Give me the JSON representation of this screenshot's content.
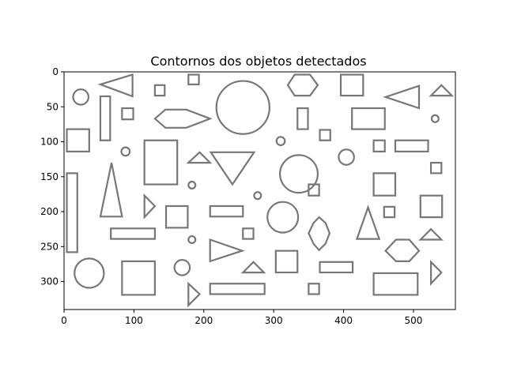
{
  "chart_data": {
    "type": "image",
    "title": "Contornos dos objetos detectados",
    "xlim": [
      0,
      560
    ],
    "ylim": [
      340,
      0
    ],
    "x_ticks": [
      0,
      100,
      200,
      300,
      400,
      500
    ],
    "y_ticks": [
      0,
      50,
      100,
      150,
      200,
      250,
      300
    ],
    "stroke_color": "#777777",
    "axes_color": "#000000",
    "background_color": "#ffffff",
    "objects": [
      {
        "shape": "circle",
        "cx": 24,
        "cy": 36,
        "r": 11
      },
      {
        "shape": "triangle",
        "points": [
          [
            52,
            18
          ],
          [
            98,
            4
          ],
          [
            98,
            35
          ]
        ]
      },
      {
        "shape": "rect",
        "x": 130,
        "y": 19,
        "w": 14,
        "h": 15
      },
      {
        "shape": "rect",
        "x": 178,
        "y": 4,
        "w": 15,
        "h": 14
      },
      {
        "shape": "circle",
        "cx": 256,
        "cy": 51,
        "r": 38
      },
      {
        "shape": "hexagon",
        "points": [
          [
            320,
            19
          ],
          [
            330,
            4
          ],
          [
            352,
            4
          ],
          [
            363,
            19
          ],
          [
            352,
            34
          ],
          [
            330,
            34
          ]
        ]
      },
      {
        "shape": "rect",
        "x": 396,
        "y": 4,
        "w": 32,
        "h": 30
      },
      {
        "shape": "triangle",
        "points": [
          [
            460,
            36
          ],
          [
            508,
            20
          ],
          [
            508,
            52
          ]
        ]
      },
      {
        "shape": "triangle",
        "points": [
          [
            525,
            34
          ],
          [
            540,
            19
          ],
          [
            555,
            34
          ]
        ]
      },
      {
        "shape": "rect",
        "x": 52,
        "y": 35,
        "w": 14,
        "h": 63
      },
      {
        "shape": "rect",
        "x": 83,
        "y": 52,
        "w": 16,
        "h": 16
      },
      {
        "shape": "hexagon",
        "points": [
          [
            130,
            67
          ],
          [
            145,
            54
          ],
          [
            175,
            54
          ],
          [
            209,
            67
          ],
          [
            175,
            80
          ],
          [
            145,
            80
          ]
        ]
      },
      {
        "shape": "rect",
        "x": 334,
        "y": 52,
        "w": 15,
        "h": 30
      },
      {
        "shape": "rect",
        "x": 412,
        "y": 52,
        "w": 47,
        "h": 30
      },
      {
        "shape": "circle",
        "cx": 531,
        "cy": 67,
        "r": 5
      },
      {
        "shape": "rect",
        "x": 4,
        "y": 82,
        "w": 32,
        "h": 32
      },
      {
        "shape": "circle",
        "cx": 310,
        "cy": 99,
        "r": 6
      },
      {
        "shape": "rect",
        "x": 366,
        "y": 83,
        "w": 15,
        "h": 15
      },
      {
        "shape": "circle",
        "cx": 88,
        "cy": 114,
        "r": 6
      },
      {
        "shape": "rect",
        "x": 115,
        "y": 98,
        "w": 47,
        "h": 63
      },
      {
        "shape": "triangle",
        "points": [
          [
            178,
            130
          ],
          [
            194,
            115
          ],
          [
            209,
            130
          ]
        ]
      },
      {
        "shape": "triangle",
        "points": [
          [
            210,
            115
          ],
          [
            272,
            115
          ],
          [
            241,
            161
          ]
        ]
      },
      {
        "shape": "circle",
        "cx": 336,
        "cy": 146,
        "r": 27
      },
      {
        "shape": "rect",
        "x": 443,
        "y": 98,
        "w": 16,
        "h": 16
      },
      {
        "shape": "rect",
        "x": 474,
        "y": 98,
        "w": 47,
        "h": 16
      },
      {
        "shape": "circle",
        "cx": 404,
        "cy": 122,
        "r": 11
      },
      {
        "shape": "rect",
        "x": 525,
        "y": 130,
        "w": 15,
        "h": 15
      },
      {
        "shape": "rect",
        "x": 4,
        "y": 145,
        "w": 15,
        "h": 113
      },
      {
        "shape": "triangle",
        "points": [
          [
            52,
            207
          ],
          [
            68,
            130
          ],
          [
            83,
            207
          ]
        ]
      },
      {
        "shape": "circle",
        "cx": 183,
        "cy": 162,
        "r": 5
      },
      {
        "shape": "circle",
        "cx": 277,
        "cy": 177,
        "r": 5
      },
      {
        "shape": "rect",
        "x": 350,
        "y": 161,
        "w": 15,
        "h": 16
      },
      {
        "shape": "rect",
        "x": 443,
        "y": 145,
        "w": 31,
        "h": 32
      },
      {
        "shape": "rect",
        "x": 510,
        "y": 177,
        "w": 31,
        "h": 31
      },
      {
        "shape": "triangle",
        "points": [
          [
            115,
            177
          ],
          [
            130,
            192
          ],
          [
            115,
            208
          ]
        ]
      },
      {
        "shape": "rect",
        "x": 146,
        "y": 192,
        "w": 31,
        "h": 31
      },
      {
        "shape": "rect",
        "x": 209,
        "y": 192,
        "w": 47,
        "h": 15
      },
      {
        "shape": "circle",
        "cx": 313,
        "cy": 208,
        "r": 22
      },
      {
        "shape": "hexagon",
        "points": [
          [
            350,
            231
          ],
          [
            357,
            216
          ],
          [
            365,
            208
          ],
          [
            374,
            216
          ],
          [
            380,
            231
          ],
          [
            374,
            246
          ],
          [
            365,
            255
          ],
          [
            357,
            246
          ]
        ]
      },
      {
        "shape": "triangle",
        "points": [
          [
            419,
            239
          ],
          [
            435,
            194
          ],
          [
            451,
            239
          ]
        ]
      },
      {
        "shape": "rect",
        "x": 458,
        "y": 193,
        "w": 15,
        "h": 15
      },
      {
        "shape": "rect",
        "x": 67,
        "y": 224,
        "w": 63,
        "h": 15
      },
      {
        "shape": "rect",
        "x": 256,
        "y": 224,
        "w": 15,
        "h": 15
      },
      {
        "shape": "circle",
        "cx": 183,
        "cy": 240,
        "r": 5
      },
      {
        "shape": "triangle",
        "points": [
          [
            510,
            240
          ],
          [
            525,
            225
          ],
          [
            540,
            240
          ]
        ]
      },
      {
        "shape": "triangle",
        "points": [
          [
            209,
            240
          ],
          [
            255,
            256
          ],
          [
            209,
            271
          ]
        ]
      },
      {
        "shape": "hexagon",
        "points": [
          [
            460,
            256
          ],
          [
            475,
            240
          ],
          [
            494,
            240
          ],
          [
            508,
            256
          ],
          [
            494,
            271
          ],
          [
            475,
            271
          ]
        ]
      },
      {
        "shape": "circle",
        "cx": 36,
        "cy": 288,
        "r": 21
      },
      {
        "shape": "rect",
        "x": 83,
        "y": 271,
        "w": 47,
        "h": 48
      },
      {
        "shape": "circle",
        "cx": 169,
        "cy": 280,
        "r": 11
      },
      {
        "shape": "triangle",
        "points": [
          [
            256,
            287
          ],
          [
            271,
            272
          ],
          [
            286,
            287
          ]
        ]
      },
      {
        "shape": "rect",
        "x": 303,
        "y": 256,
        "w": 31,
        "h": 31
      },
      {
        "shape": "rect",
        "x": 366,
        "y": 272,
        "w": 47,
        "h": 15
      },
      {
        "shape": "triangle",
        "points": [
          [
            525,
            272
          ],
          [
            540,
            287
          ],
          [
            525,
            303
          ]
        ]
      },
      {
        "shape": "rect",
        "x": 209,
        "y": 303,
        "w": 78,
        "h": 15
      },
      {
        "shape": "rect",
        "x": 350,
        "y": 303,
        "w": 15,
        "h": 15
      },
      {
        "shape": "rect",
        "x": 443,
        "y": 288,
        "w": 63,
        "h": 31
      },
      {
        "shape": "triangle",
        "points": [
          [
            178,
            303
          ],
          [
            194,
            318
          ],
          [
            178,
            334
          ]
        ]
      }
    ]
  }
}
